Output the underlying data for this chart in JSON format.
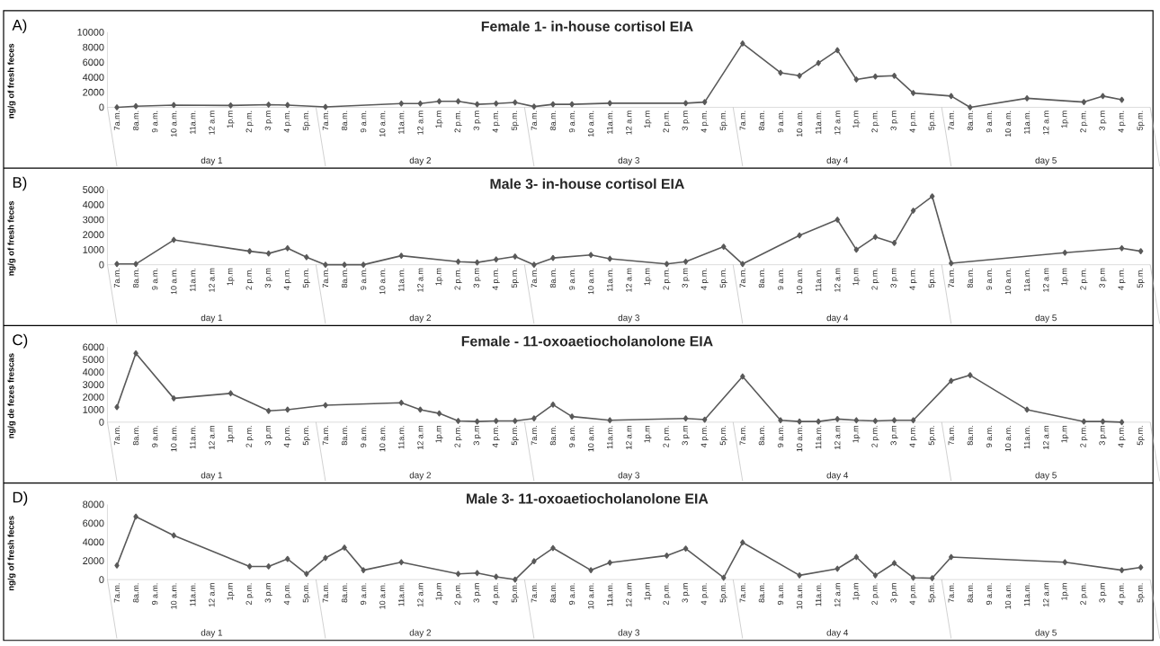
{
  "chart_data": [
    {
      "type": "line",
      "title": "Female 1- in-house cortisol  EIA",
      "ylabel": "ng/g of fresh feces",
      "color": "#595959",
      "marker": "diamond",
      "categories": [
        "7a.m.",
        "8a.m.",
        "9 a.m.",
        "10 a.m.",
        "11a.m.",
        "12 a.m",
        "1p.m",
        "2 p.m.",
        "3 p.m",
        "4 p.m.",
        "5p.m.",
        "7a.m.",
        "8a.m.",
        "9 a.m.",
        "10 a.m.",
        "11a.m.",
        "12 a.m",
        "1p.m",
        "2 p.m.",
        "3 p.m",
        "4 p.m.",
        "5p.m.",
        "7a.m.",
        "8a.m.",
        "9 a.m.",
        "10 a.m.",
        "11a.m.",
        "12 a.m",
        "1p.m",
        "2 p.m.",
        "3 p.m",
        "4 p.m.",
        "5p.m.",
        "7a.m.",
        "8a.m.",
        "9 a.m.",
        "10 a.m.",
        "11a.m.",
        "12 a.m",
        "1p.m",
        "2 p.m.",
        "3 p.m",
        "4 p.m.",
        "5p.m.",
        "7a.m.",
        "8a.m.",
        "9 a.m.",
        "10 a.m.",
        "11a.m.",
        "12 a.m",
        "1p.m",
        "2 p.m.",
        "3 p.m",
        "4 p.m.",
        "5p.m."
      ],
      "values": [
        0,
        150,
        null,
        300,
        null,
        null,
        250,
        null,
        350,
        300,
        null,
        50,
        null,
        null,
        null,
        500,
        500,
        800,
        800,
        400,
        500,
        650,
        100,
        400,
        400,
        null,
        550,
        null,
        null,
        null,
        550,
        700,
        null,
        8500,
        null,
        4600,
        4200,
        5900,
        7600,
        3700,
        4100,
        4200,
        1900,
        null,
        1500,
        0,
        null,
        null,
        1200,
        null,
        null,
        700,
        1500,
        1000,
        null
      ],
      "ylim": [
        0,
        10000
      ],
      "yticks": [
        0,
        2000,
        4000,
        6000,
        8000,
        10000
      ],
      "annotations": [
        "A)",
        "day 1",
        "day 2",
        "day 3",
        "day 4",
        "day 5"
      ]
    },
    {
      "type": "line",
      "title": "Male 3- in-house cortisol  EIA",
      "ylabel": "ng/g of fresh feces",
      "color": "#595959",
      "marker": "diamond",
      "categories": [
        "7a.m.",
        "8a.m.",
        "9 a.m.",
        "10 a.m.",
        "11a.m.",
        "12 a.m",
        "1p.m",
        "2 p.m.",
        "3 p.m",
        "4 p.m.",
        "5p.m.",
        "7a.m.",
        "8a.m.",
        "9 a.m.",
        "10 a.m.",
        "11a.m.",
        "12 a.m",
        "1p.m",
        "2 p.m.",
        "3 p.m",
        "4 p.m.",
        "5p.m.",
        "7a.m.",
        "8a.m.",
        "9 a.m.",
        "10 a.m.",
        "11a.m.",
        "12 a.m",
        "1p.m",
        "2 p.m.",
        "3 p.m",
        "4 p.m.",
        "5p.m.",
        "7a.m.",
        "8a.m.",
        "9 a.m.",
        "10 a.m.",
        "11a.m.",
        "12 a.m",
        "1p.m",
        "2 p.m.",
        "3 p.m",
        "4 p.m.",
        "5p.m.",
        "7a.m.",
        "8a.m.",
        "9 a.m.",
        "10 a.m.",
        "11a.m.",
        "12 a.m",
        "1p.m",
        "2 p.m.",
        "3 p.m",
        "4 p.m.",
        "5p.m."
      ],
      "values": [
        50,
        50,
        null,
        1650,
        null,
        null,
        null,
        900,
        750,
        1100,
        500,
        0,
        0,
        0,
        null,
        600,
        null,
        null,
        200,
        150,
        350,
        550,
        0,
        450,
        null,
        650,
        400,
        null,
        null,
        50,
        200,
        null,
        1200,
        50,
        null,
        null,
        1950,
        null,
        3000,
        1000,
        1850,
        1450,
        3600,
        4550,
        100,
        null,
        null,
        null,
        null,
        null,
        800,
        null,
        null,
        1100,
        900
      ],
      "ylim": [
        0,
        5000
      ],
      "yticks": [
        0,
        1000,
        2000,
        3000,
        4000,
        5000
      ],
      "annotations": [
        "B)",
        "day 1",
        "day 2",
        "day 3",
        "day 4",
        "day 5"
      ]
    },
    {
      "type": "line",
      "title": "Female  - 11-oxoaetiocholanolone EIA",
      "ylabel": "ng/g de fezes frescas",
      "color": "#595959",
      "marker": "diamond",
      "categories": [
        "7a.m.",
        "8a.m.",
        "9 a.m.",
        "10 a.m.",
        "11a.m.",
        "12 a.m",
        "1p.m",
        "2 p.m.",
        "3 p.m",
        "4 p.m.",
        "5p.m.",
        "7a.m.",
        "8a.m.",
        "9 a.m.",
        "10 a.m.",
        "11a.m.",
        "12 a.m",
        "1p.m",
        "2 p.m.",
        "3 p.m",
        "4 p.m.",
        "5p.m.",
        "7a.m.",
        "8a.m.",
        "9 a.m.",
        "10 a.m.",
        "11a.m.",
        "12 a.m",
        "1p.m",
        "2 p.m.",
        "3 p.m",
        "4 p.m.",
        "5p.m.",
        "7a.m.",
        "8a.m.",
        "9 a.m.",
        "10 a.m.",
        "11a.m.",
        "12 a.m",
        "1p.m",
        "2 p.m.",
        "3 p.m",
        "4 p.m.",
        "5p.m.",
        "7a.m.",
        "8a.m.",
        "9 a.m.",
        "10 a.m.",
        "11a.m.",
        "12 a.m",
        "1p.m",
        "2 p.m.",
        "3 p.m",
        "4 p.m.",
        "5p.m."
      ],
      "values": [
        1200,
        5500,
        null,
        1900,
        null,
        null,
        2300,
        null,
        900,
        1000,
        null,
        1350,
        null,
        null,
        null,
        1550,
        1000,
        700,
        100,
        50,
        100,
        100,
        300,
        1400,
        450,
        null,
        150,
        null,
        null,
        null,
        300,
        200,
        null,
        3650,
        null,
        150,
        50,
        50,
        250,
        150,
        100,
        150,
        150,
        null,
        3300,
        3750,
        null,
        null,
        1000,
        null,
        null,
        50,
        50,
        0,
        null
      ],
      "ylim": [
        0,
        6000
      ],
      "yticks": [
        0,
        1000,
        2000,
        3000,
        4000,
        5000,
        6000
      ],
      "annotations": [
        "C)",
        "day 1",
        "day 2",
        "day 3",
        "day 4",
        "day 5"
      ]
    },
    {
      "type": "line",
      "title": "Male 3- 11-oxoaetiocholanolone EIA",
      "ylabel": "ng/g of fresh feces",
      "color": "#595959",
      "marker": "diamond",
      "categories": [
        "7a.m.",
        "8a.m.",
        "9 a.m.",
        "10 a.m.",
        "11a.m.",
        "12 a.m",
        "1p.m",
        "2 p.m.",
        "3 p.m",
        "4 p.m.",
        "5p.m.",
        "7a.m.",
        "8a.m.",
        "9 a.m.",
        "10 a.m.",
        "11a.m.",
        "12 a.m",
        "1p.m",
        "2 p.m.",
        "3 p.m",
        "4 p.m.",
        "5p.m.",
        "7a.m.",
        "8a.m.",
        "9 a.m.",
        "10 a.m.",
        "11a.m.",
        "12 a.m",
        "1p.m",
        "2 p.m.",
        "3 p.m",
        "4 p.m.",
        "5p.m.",
        "7a.m.",
        "8a.m.",
        "9 a.m.",
        "10 a.m.",
        "11a.m.",
        "12 a.m",
        "1p.m",
        "2 p.m.",
        "3 p.m",
        "4 p.m.",
        "5p.m.",
        "7a.m.",
        "8a.m.",
        "9 a.m.",
        "10 a.m.",
        "11a.m.",
        "12 a.m",
        "1p.m",
        "2 p.m.",
        "3 p.m",
        "4 p.m.",
        "5p.m."
      ],
      "values": [
        1500,
        6700,
        null,
        4700,
        null,
        null,
        null,
        1400,
        1400,
        2200,
        600,
        2300,
        3400,
        1000,
        null,
        1850,
        null,
        null,
        600,
        700,
        300,
        0,
        1950,
        3350,
        null,
        1000,
        1800,
        null,
        null,
        2550,
        3300,
        null,
        200,
        3950,
        null,
        null,
        450,
        null,
        1150,
        2400,
        450,
        1750,
        200,
        150,
        2400,
        null,
        null,
        null,
        null,
        null,
        1850,
        null,
        null,
        1000,
        1300
      ],
      "ylim": [
        0,
        8000
      ],
      "yticks": [
        0,
        2000,
        4000,
        6000,
        8000
      ],
      "annotations": [
        "D)",
        "day 1",
        "day 2",
        "day 3",
        "day 4",
        "day 5"
      ]
    }
  ]
}
